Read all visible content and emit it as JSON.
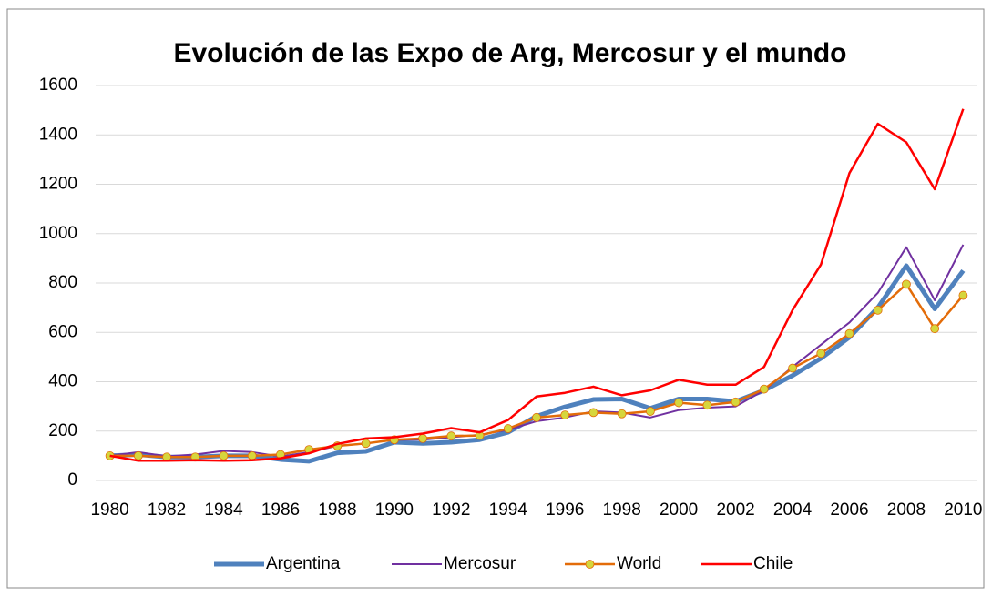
{
  "chart_data": {
    "type": "line",
    "title": "Evolución de las Expo de Arg, Mercosur y el mundo",
    "categories": [
      "1980",
      null,
      "1982",
      null,
      "1984",
      null,
      "1986",
      null,
      "1988",
      null,
      "1990",
      null,
      "1992",
      null,
      "1994",
      null,
      "1996",
      null,
      "1998",
      null,
      "2000",
      null,
      "2002",
      null,
      "2004",
      null,
      "2006",
      null,
      "2008",
      null,
      "2010"
    ],
    "series": [
      {
        "name": "Argentina",
        "color": "#4f81bd",
        "line_width": 5,
        "values": [
          100,
          105,
          95,
          95,
          100,
          100,
          85,
          78,
          112,
          118,
          155,
          150,
          155,
          165,
          195,
          260,
          298,
          328,
          330,
          292,
          330,
          330,
          320,
          365,
          425,
          495,
          580,
          700,
          870,
          695,
          850
        ]
      },
      {
        "name": "Mercosur",
        "color": "#7030a0",
        "line_width": 2,
        "values": [
          100,
          115,
          98,
          105,
          120,
          115,
          97,
          115,
          140,
          150,
          165,
          165,
          175,
          185,
          205,
          240,
          255,
          280,
          275,
          255,
          285,
          295,
          300,
          365,
          460,
          550,
          640,
          760,
          945,
          730,
          955
        ]
      },
      {
        "name": "World",
        "color": "#e36c09",
        "line_width": 2.5,
        "marker": true,
        "marker_color": "#d6d63c",
        "values": [
          100,
          100,
          95,
          95,
          100,
          100,
          105,
          125,
          140,
          150,
          165,
          170,
          180,
          182,
          210,
          255,
          265,
          275,
          270,
          280,
          315,
          305,
          318,
          370,
          455,
          515,
          595,
          690,
          795,
          615,
          750
        ]
      },
      {
        "name": "Chile",
        "color": "#ff0000",
        "line_width": 2.5,
        "values": [
          100,
          80,
          80,
          82,
          80,
          82,
          90,
          110,
          148,
          170,
          175,
          190,
          212,
          195,
          245,
          340,
          355,
          380,
          345,
          365,
          408,
          388,
          388,
          460,
          690,
          875,
          1245,
          1445,
          1370,
          1180,
          1505
        ]
      }
    ],
    "ylim": [
      0,
      1600
    ],
    "yticks": [
      0,
      200,
      400,
      600,
      800,
      1000,
      1200,
      1400,
      1600
    ],
    "grid": true,
    "legend": "bottom"
  }
}
